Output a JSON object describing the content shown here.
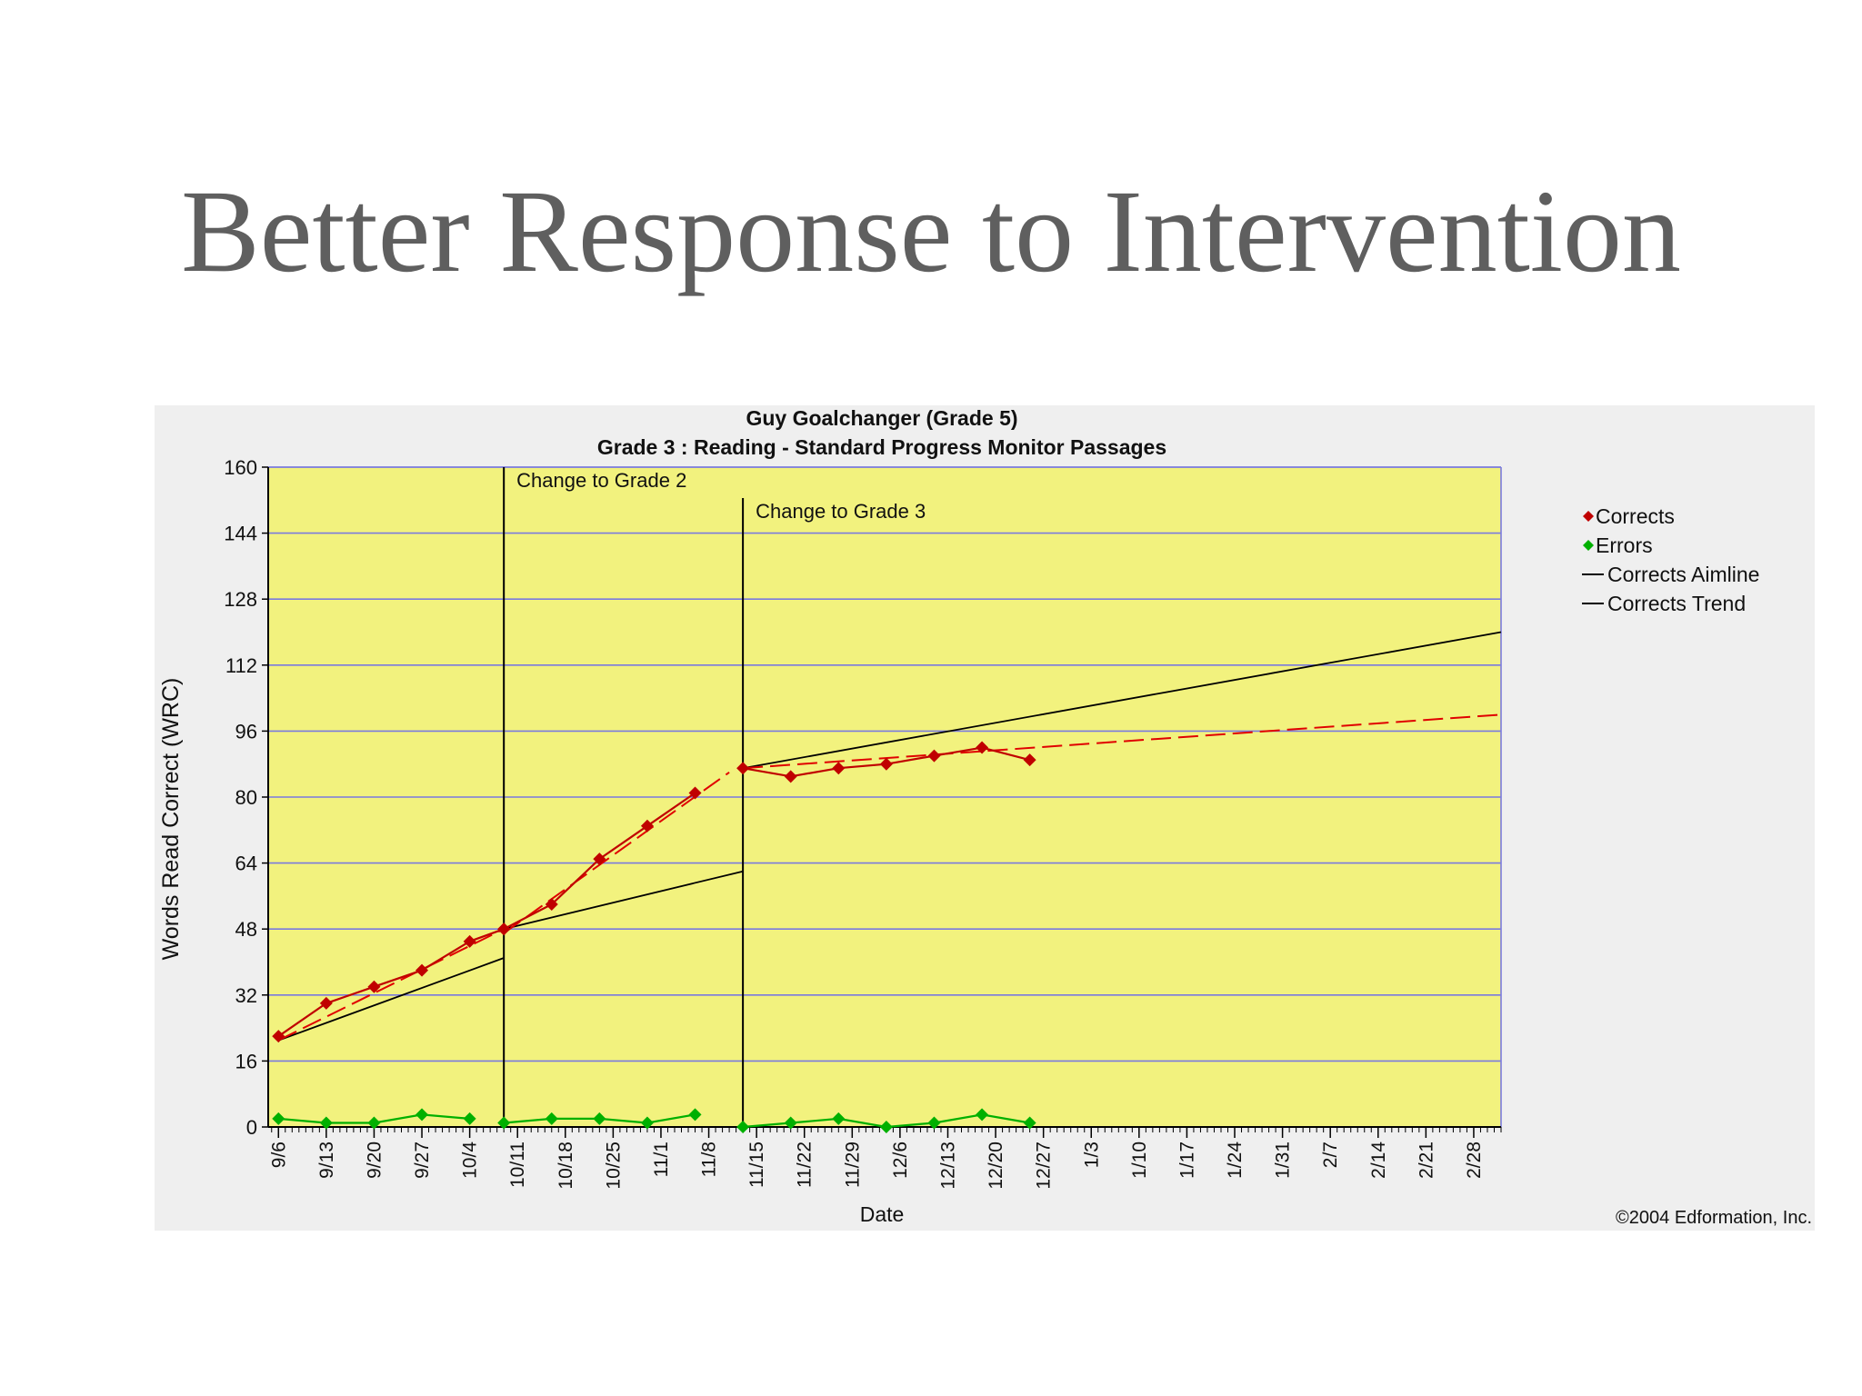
{
  "slide": {
    "title": "Better Response to Intervention"
  },
  "chart_data": {
    "type": "line",
    "title": "Guy Goalchanger (Grade 5)",
    "subtitle": "Grade 3 : Reading - Standard Progress Monitor Passages",
    "xlabel": "Date",
    "ylabel": "Words Read Correct (WRC)",
    "ylim": [
      0,
      160
    ],
    "yticks": [
      0,
      16,
      32,
      48,
      64,
      80,
      96,
      112,
      128,
      144,
      160
    ],
    "xlim": [
      "9/6",
      "3/3"
    ],
    "xticks": [
      "9/6",
      "9/13",
      "9/20",
      "9/27",
      "10/4",
      "10/11",
      "10/18",
      "10/25",
      "11/1",
      "11/8",
      "11/15",
      "11/22",
      "11/29",
      "12/6",
      "12/13",
      "12/20",
      "12/27",
      "1/3",
      "1/10",
      "1/17",
      "1/24",
      "1/31",
      "2/7",
      "2/14",
      "2/21",
      "2/28"
    ],
    "grid": true,
    "legend_position": "right",
    "plot_background": "#f2f27e",
    "phase_changes": [
      {
        "date": "10/9",
        "label": "Change to Grade 2"
      },
      {
        "date": "11/13",
        "label": "Change to Grade 3"
      }
    ],
    "series": [
      {
        "name": "Corrects",
        "color": "#c00000",
        "marker": "diamond",
        "segments": [
          {
            "x": [
              "9/6",
              "9/13",
              "9/20",
              "9/27",
              "10/4",
              "10/9"
            ],
            "y": [
              22,
              30,
              34,
              38,
              45,
              48
            ]
          },
          {
            "x": [
              "10/9",
              "10/16",
              "10/23",
              "10/30",
              "11/6"
            ],
            "y": [
              48,
              54,
              65,
              73,
              81
            ]
          },
          {
            "x": [
              "11/13",
              "11/20",
              "11/27",
              "12/4",
              "12/11",
              "12/18",
              "12/25"
            ],
            "y": [
              87,
              85,
              87,
              88,
              90,
              92,
              89
            ]
          }
        ]
      },
      {
        "name": "Errors",
        "color": "#00b000",
        "marker": "diamond",
        "segments": [
          {
            "x": [
              "9/6",
              "9/13",
              "9/20",
              "9/27",
              "10/4"
            ],
            "y": [
              2,
              1,
              1,
              3,
              2
            ]
          },
          {
            "x": [
              "10/9",
              "10/16",
              "10/23",
              "10/30",
              "11/6"
            ],
            "y": [
              1,
              2,
              2,
              1,
              3
            ]
          },
          {
            "x": [
              "11/13",
              "11/20",
              "11/27",
              "12/4",
              "12/11",
              "12/18",
              "12/25"
            ],
            "y": [
              0,
              1,
              2,
              0,
              1,
              3,
              1
            ]
          }
        ]
      },
      {
        "name": "Corrects Aimline",
        "color": "#000000",
        "marker": "none",
        "segments": [
          {
            "x": [
              "9/6",
              "10/9"
            ],
            "y": [
              21,
              41
            ]
          },
          {
            "x": [
              "10/9",
              "11/13"
            ],
            "y": [
              48,
              62
            ]
          },
          {
            "x": [
              "11/13",
              "3/3"
            ],
            "y": [
              87,
              120
            ]
          }
        ]
      },
      {
        "name": "Corrects Trend",
        "color": "#e00000",
        "marker": "none",
        "dashed": true,
        "segments": [
          {
            "x": [
              "9/6",
              "10/9"
            ],
            "y": [
              21,
              48
            ]
          },
          {
            "x": [
              "10/9",
              "11/11"
            ],
            "y": [
              47,
              86
            ]
          },
          {
            "x": [
              "11/13",
              "3/3"
            ],
            "y": [
              87,
              100
            ]
          }
        ]
      }
    ],
    "copyright": "©2004 Edformation, Inc."
  }
}
